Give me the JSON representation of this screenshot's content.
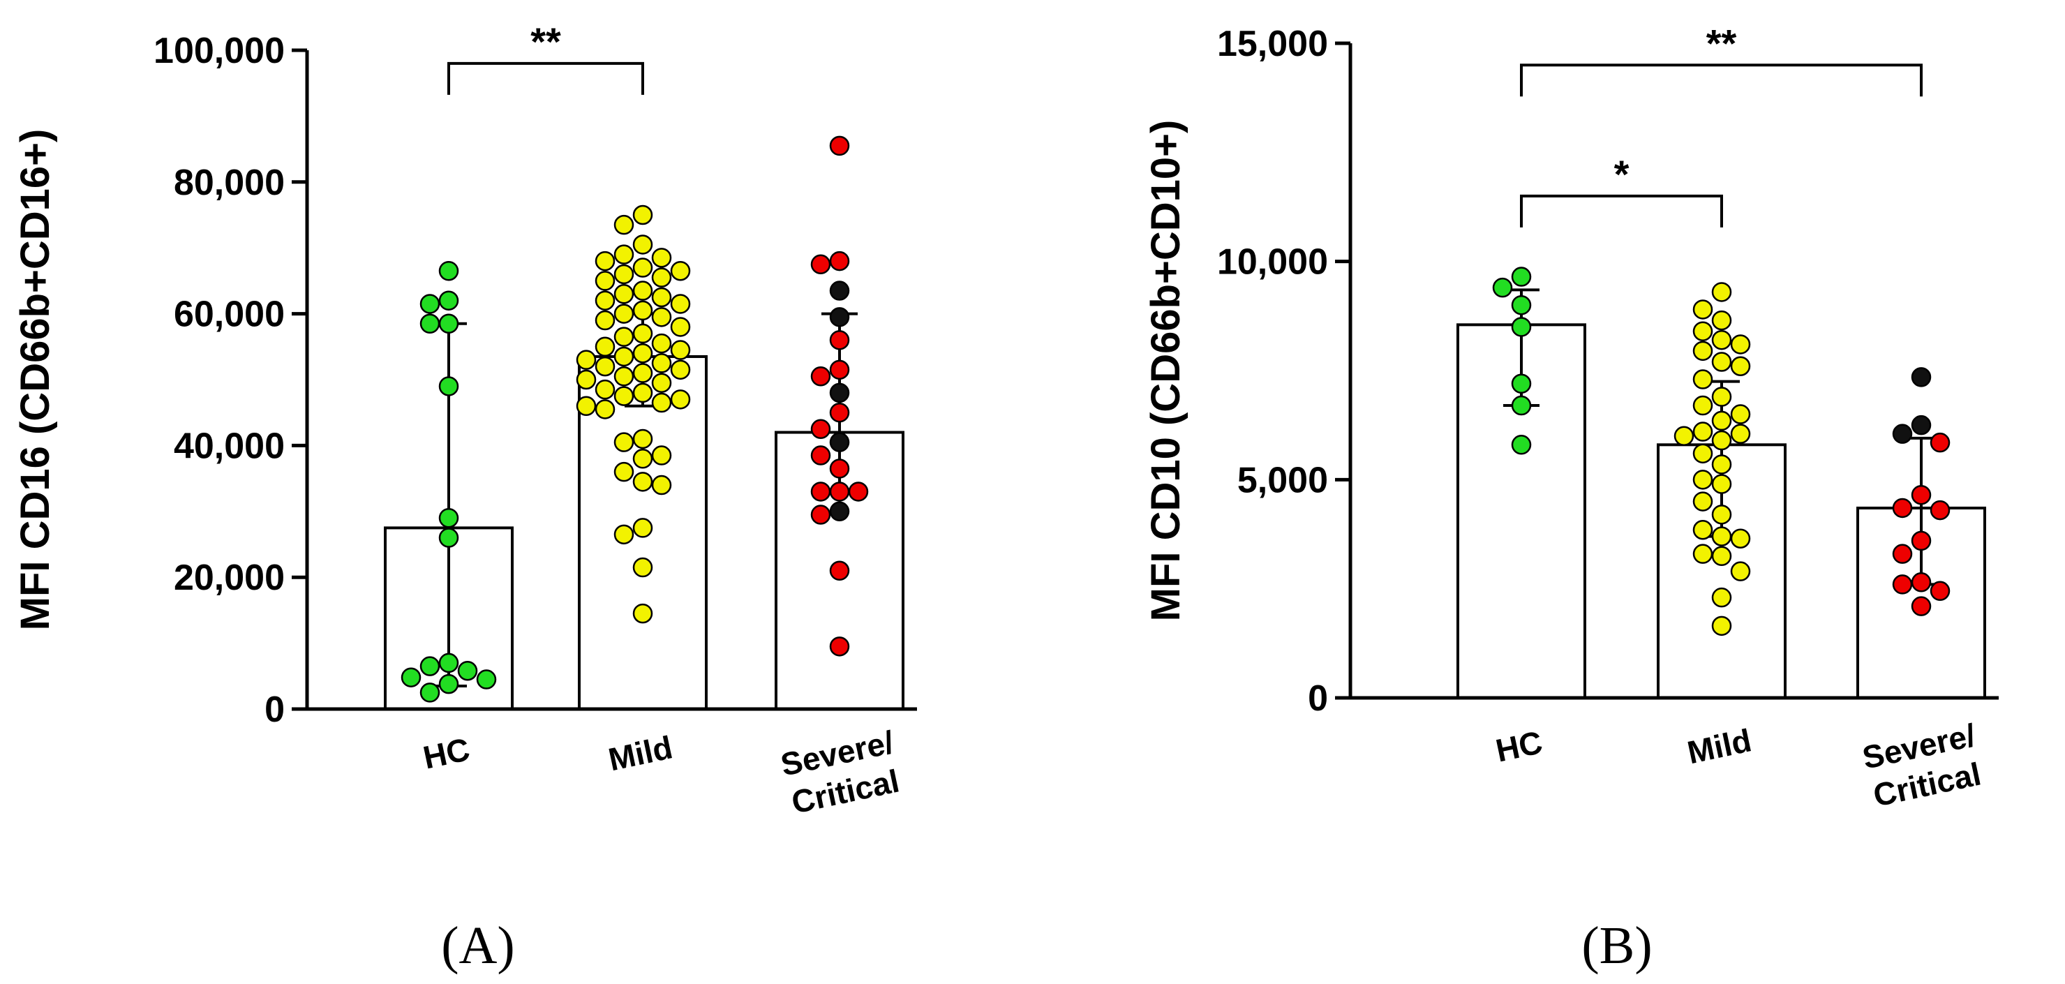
{
  "figure": {
    "panels": [
      "(A)",
      "(B)"
    ],
    "colors": {
      "HC": "#22dd22",
      "Mild": "#f2f200",
      "Severe": "#ee0000",
      "Critical": "#111111",
      "bar_fill": "#ffffff",
      "line": "#000000"
    }
  },
  "chart_data": [
    {
      "type": "bar",
      "panel_label": "(A)",
      "ylabel": "MFI CD16 (CD66b+CD16+)",
      "xlabel": "",
      "ylim": [
        0,
        100000
      ],
      "yticks": [
        0,
        20000,
        40000,
        60000,
        80000,
        100000
      ],
      "ytick_labels": [
        "0",
        "20,000",
        "40,000",
        "60,000",
        "80,000",
        "100,000"
      ],
      "categories": [
        {
          "label_lines": [
            "HC"
          ],
          "bar": 27500,
          "error_low": 3500,
          "error_high": 58500,
          "points": [
            {
              "v": 66500,
              "g": "HC"
            },
            {
              "v": 62000,
              "g": "HC"
            },
            {
              "v": 61500,
              "g": "HC"
            },
            {
              "v": 58500,
              "g": "HC"
            },
            {
              "v": 58500,
              "g": "HC"
            },
            {
              "v": 49000,
              "g": "HC"
            },
            {
              "v": 29000,
              "g": "HC"
            },
            {
              "v": 26000,
              "g": "HC"
            },
            {
              "v": 7000,
              "g": "HC"
            },
            {
              "v": 6500,
              "g": "HC"
            },
            {
              "v": 5800,
              "g": "HC"
            },
            {
              "v": 4800,
              "g": "HC"
            },
            {
              "v": 4500,
              "g": "HC"
            },
            {
              "v": 3800,
              "g": "HC"
            },
            {
              "v": 2500,
              "g": "HC"
            }
          ]
        },
        {
          "label_lines": [
            "Mild"
          ],
          "bar": 53500,
          "error_low": 46000,
          "error_high": 60000,
          "points": [
            {
              "v": 75000,
              "g": "Mild"
            },
            {
              "v": 73500,
              "g": "Mild"
            },
            {
              "v": 70500,
              "g": "Mild"
            },
            {
              "v": 69000,
              "g": "Mild"
            },
            {
              "v": 68500,
              "g": "Mild"
            },
            {
              "v": 68000,
              "g": "Mild"
            },
            {
              "v": 67000,
              "g": "Mild"
            },
            {
              "v": 66500,
              "g": "Mild"
            },
            {
              "v": 66000,
              "g": "Mild"
            },
            {
              "v": 65500,
              "g": "Mild"
            },
            {
              "v": 65000,
              "g": "Mild"
            },
            {
              "v": 63500,
              "g": "Mild"
            },
            {
              "v": 63000,
              "g": "Mild"
            },
            {
              "v": 62500,
              "g": "Mild"
            },
            {
              "v": 62000,
              "g": "Mild"
            },
            {
              "v": 61500,
              "g": "Mild"
            },
            {
              "v": 60500,
              "g": "Mild"
            },
            {
              "v": 60000,
              "g": "Mild"
            },
            {
              "v": 59500,
              "g": "Mild"
            },
            {
              "v": 59000,
              "g": "Mild"
            },
            {
              "v": 58000,
              "g": "Mild"
            },
            {
              "v": 57000,
              "g": "Mild"
            },
            {
              "v": 56500,
              "g": "Mild"
            },
            {
              "v": 55500,
              "g": "Mild"
            },
            {
              "v": 55000,
              "g": "Mild"
            },
            {
              "v": 54500,
              "g": "Mild"
            },
            {
              "v": 54000,
              "g": "Mild"
            },
            {
              "v": 53500,
              "g": "Mild"
            },
            {
              "v": 53000,
              "g": "Mild"
            },
            {
              "v": 52500,
              "g": "Mild"
            },
            {
              "v": 52000,
              "g": "Mild"
            },
            {
              "v": 51500,
              "g": "Mild"
            },
            {
              "v": 51000,
              "g": "Mild"
            },
            {
              "v": 50500,
              "g": "Mild"
            },
            {
              "v": 50000,
              "g": "Mild"
            },
            {
              "v": 49500,
              "g": "Mild"
            },
            {
              "v": 48500,
              "g": "Mild"
            },
            {
              "v": 48000,
              "g": "Mild"
            },
            {
              "v": 47500,
              "g": "Mild"
            },
            {
              "v": 47000,
              "g": "Mild"
            },
            {
              "v": 46500,
              "g": "Mild"
            },
            {
              "v": 46000,
              "g": "Mild"
            },
            {
              "v": 45500,
              "g": "Mild"
            },
            {
              "v": 41000,
              "g": "Mild"
            },
            {
              "v": 40500,
              "g": "Mild"
            },
            {
              "v": 38500,
              "g": "Mild"
            },
            {
              "v": 38000,
              "g": "Mild"
            },
            {
              "v": 36000,
              "g": "Mild"
            },
            {
              "v": 34500,
              "g": "Mild"
            },
            {
              "v": 34000,
              "g": "Mild"
            },
            {
              "v": 27500,
              "g": "Mild"
            },
            {
              "v": 26500,
              "g": "Mild"
            },
            {
              "v": 21500,
              "g": "Mild"
            },
            {
              "v": 14500,
              "g": "Mild"
            }
          ]
        },
        {
          "label_lines": [
            "Severe/",
            "Critical"
          ],
          "bar": 42000,
          "error_low": 33000,
          "error_high": 60000,
          "points": [
            {
              "v": 85500,
              "g": "Severe"
            },
            {
              "v": 68000,
              "g": "Severe"
            },
            {
              "v": 67500,
              "g": "Severe"
            },
            {
              "v": 63500,
              "g": "Critical"
            },
            {
              "v": 59500,
              "g": "Critical"
            },
            {
              "v": 56000,
              "g": "Severe"
            },
            {
              "v": 51500,
              "g": "Severe"
            },
            {
              "v": 50500,
              "g": "Severe"
            },
            {
              "v": 48000,
              "g": "Critical"
            },
            {
              "v": 45000,
              "g": "Severe"
            },
            {
              "v": 42500,
              "g": "Severe"
            },
            {
              "v": 40500,
              "g": "Critical"
            },
            {
              "v": 38500,
              "g": "Severe"
            },
            {
              "v": 36500,
              "g": "Severe"
            },
            {
              "v": 33000,
              "g": "Severe"
            },
            {
              "v": 33000,
              "g": "Severe"
            },
            {
              "v": 33000,
              "g": "Severe"
            },
            {
              "v": 30000,
              "g": "Critical"
            },
            {
              "v": 29500,
              "g": "Severe"
            },
            {
              "v": 21000,
              "g": "Severe"
            },
            {
              "v": 9500,
              "g": "Severe"
            }
          ]
        }
      ],
      "significance": [
        {
          "from": 0,
          "to": 1,
          "label": "**",
          "y": 98000
        }
      ]
    },
    {
      "type": "bar",
      "panel_label": "(B)",
      "ylabel": "MFI CD10 (CD66b+CD10+)",
      "xlabel": "",
      "ylim": [
        0,
        15000
      ],
      "yticks": [
        0,
        5000,
        10000,
        15000
      ],
      "ytick_labels": [
        "0",
        "5,000",
        "10,000",
        "15,000"
      ],
      "categories": [
        {
          "label_lines": [
            "HC"
          ],
          "bar": 8550,
          "error_low": 6700,
          "error_high": 9350,
          "points": [
            {
              "v": 9650,
              "g": "HC"
            },
            {
              "v": 9400,
              "g": "HC"
            },
            {
              "v": 9000,
              "g": "HC"
            },
            {
              "v": 8500,
              "g": "HC"
            },
            {
              "v": 7200,
              "g": "HC"
            },
            {
              "v": 6700,
              "g": "HC"
            },
            {
              "v": 5800,
              "g": "HC"
            }
          ]
        },
        {
          "label_lines": [
            "Mild"
          ],
          "bar": 5800,
          "error_low": 3700,
          "error_high": 7250,
          "points": [
            {
              "v": 9300,
              "g": "Mild"
            },
            {
              "v": 8900,
              "g": "Mild"
            },
            {
              "v": 8650,
              "g": "Mild"
            },
            {
              "v": 8400,
              "g": "Mild"
            },
            {
              "v": 8200,
              "g": "Mild"
            },
            {
              "v": 8100,
              "g": "Mild"
            },
            {
              "v": 7950,
              "g": "Mild"
            },
            {
              "v": 7700,
              "g": "Mild"
            },
            {
              "v": 7600,
              "g": "Mild"
            },
            {
              "v": 7300,
              "g": "Mild"
            },
            {
              "v": 6900,
              "g": "Mild"
            },
            {
              "v": 6700,
              "g": "Mild"
            },
            {
              "v": 6500,
              "g": "Mild"
            },
            {
              "v": 6350,
              "g": "Mild"
            },
            {
              "v": 6100,
              "g": "Mild"
            },
            {
              "v": 6050,
              "g": "Mild"
            },
            {
              "v": 6000,
              "g": "Mild"
            },
            {
              "v": 5900,
              "g": "Mild"
            },
            {
              "v": 5600,
              "g": "Mild"
            },
            {
              "v": 5350,
              "g": "Mild"
            },
            {
              "v": 5000,
              "g": "Mild"
            },
            {
              "v": 4900,
              "g": "Mild"
            },
            {
              "v": 4500,
              "g": "Mild"
            },
            {
              "v": 4200,
              "g": "Mild"
            },
            {
              "v": 3850,
              "g": "Mild"
            },
            {
              "v": 3700,
              "g": "Mild"
            },
            {
              "v": 3650,
              "g": "Mild"
            },
            {
              "v": 3300,
              "g": "Mild"
            },
            {
              "v": 3250,
              "g": "Mild"
            },
            {
              "v": 2900,
              "g": "Mild"
            },
            {
              "v": 2300,
              "g": "Mild"
            },
            {
              "v": 1650,
              "g": "Mild"
            }
          ]
        },
        {
          "label_lines": [
            "Severe/",
            "Critical"
          ],
          "bar": 4350,
          "error_low": 2600,
          "error_high": 5950,
          "points": [
            {
              "v": 7350,
              "g": "Critical"
            },
            {
              "v": 6250,
              "g": "Critical"
            },
            {
              "v": 6050,
              "g": "Critical"
            },
            {
              "v": 5850,
              "g": "Severe"
            },
            {
              "v": 4650,
              "g": "Severe"
            },
            {
              "v": 4350,
              "g": "Severe"
            },
            {
              "v": 4300,
              "g": "Severe"
            },
            {
              "v": 3600,
              "g": "Severe"
            },
            {
              "v": 3300,
              "g": "Severe"
            },
            {
              "v": 2650,
              "g": "Severe"
            },
            {
              "v": 2600,
              "g": "Severe"
            },
            {
              "v": 2450,
              "g": "Severe"
            },
            {
              "v": 2100,
              "g": "Severe"
            }
          ]
        }
      ],
      "significance": [
        {
          "from": 0,
          "to": 2,
          "label": "**",
          "y": 14500
        },
        {
          "from": 0,
          "to": 1,
          "label": "*",
          "y": 11500
        }
      ]
    }
  ]
}
